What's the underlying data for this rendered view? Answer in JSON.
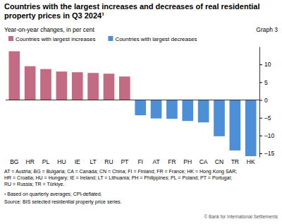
{
  "chart_data": {
    "type": "bar",
    "title": "Countries with the largest increases and decreases of real residential property prices in Q3 2024¹",
    "subtitle": "Year-on-year changes, in per cent",
    "graph_label": "Graph 3",
    "categories": [
      "BG",
      "HR",
      "PL",
      "HU",
      "IE",
      "LT",
      "RU",
      "PT",
      "FI",
      "AT",
      "FR",
      "PH",
      "CA",
      "CN",
      "TR",
      "HK"
    ],
    "series": [
      {
        "name": "Countries with largest increases",
        "color": "#c36b82",
        "values": [
          13.7,
          9.5,
          8.7,
          8.0,
          7.8,
          7.6,
          7.4,
          6.6,
          null,
          null,
          null,
          null,
          null,
          null,
          null,
          null
        ]
      },
      {
        "name": "Countries with largest decreases",
        "color": "#4c8fd6",
        "values": [
          null,
          null,
          null,
          null,
          null,
          null,
          null,
          null,
          -4.3,
          -5.2,
          -5.3,
          -5.9,
          -6.3,
          -10.2,
          -14.2,
          -15.8
        ]
      }
    ],
    "ylim": [
      -16,
      15
    ],
    "yticks": [
      {
        "value": -15,
        "label": "–15"
      },
      {
        "value": -10,
        "label": "–10"
      },
      {
        "value": -5,
        "label": "–5"
      },
      0,
      5,
      10
    ],
    "grid": false,
    "legend": "top",
    "abbreviations": [
      "AT = Austria; BG = Bulgaria; CA = Canada; CN = China; FI = Finland; FR = France; HK = Hong Kong SAR;",
      "HR = Croatia; HU = Hungary; IE = Ireland; LT = Lithuania; PH = Philippines; PL = Poland; PT = Portugal;",
      "RU = Russia; TR = Türkiye."
    ],
    "footnote": "¹ Based on quarterly averages; CPI-deflated.",
    "source": "Source: BIS selected residential property price series.",
    "copyright": "© Bank for International Settlements"
  }
}
